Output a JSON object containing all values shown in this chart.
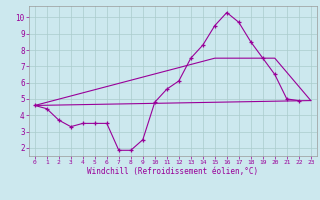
{
  "xlabel": "Windchill (Refroidissement éolien,°C)",
  "bg_color": "#cce8ee",
  "line_color": "#990099",
  "grid_color": "#aacccc",
  "xlim": [
    -0.5,
    23.5
  ],
  "ylim": [
    1.5,
    10.7
  ],
  "yticks": [
    2,
    3,
    4,
    5,
    6,
    7,
    8,
    9,
    10
  ],
  "xticks": [
    0,
    1,
    2,
    3,
    4,
    5,
    6,
    7,
    8,
    9,
    10,
    11,
    12,
    13,
    14,
    15,
    16,
    17,
    18,
    19,
    20,
    21,
    22,
    23
  ],
  "line1_x": [
    0,
    1,
    2,
    3,
    4,
    5,
    6,
    7,
    8,
    9,
    10,
    11,
    12,
    13,
    14,
    15,
    16,
    17,
    18,
    19,
    20,
    21,
    22
  ],
  "line1_y": [
    4.6,
    4.4,
    3.7,
    3.3,
    3.5,
    3.5,
    3.5,
    1.85,
    1.85,
    2.5,
    4.8,
    5.6,
    6.1,
    7.5,
    8.3,
    9.5,
    10.3,
    9.7,
    8.5,
    7.5,
    6.5,
    5.0,
    4.9
  ],
  "line2_x": [
    0,
    23
  ],
  "line2_y": [
    4.6,
    4.9
  ],
  "line3_x": [
    0,
    15,
    20,
    23
  ],
  "line3_y": [
    4.6,
    7.5,
    7.5,
    4.9
  ]
}
